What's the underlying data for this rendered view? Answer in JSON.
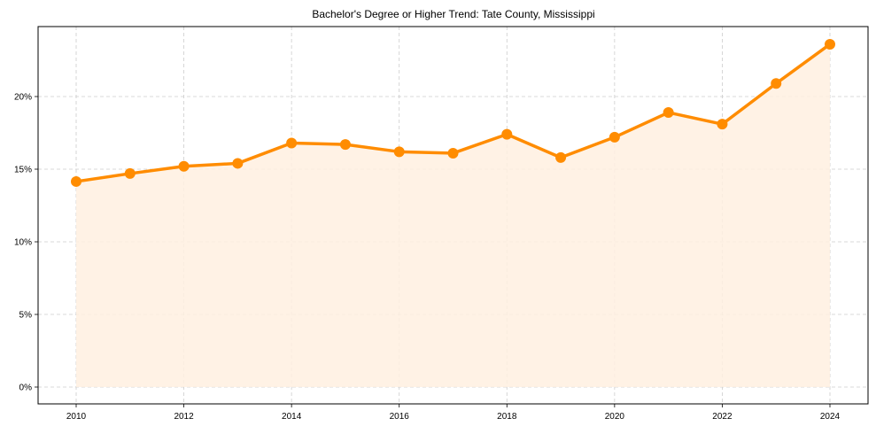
{
  "chart_data": {
    "type": "line",
    "title": "Bachelor's Degree or Higher Trend: Tate County, Mississippi",
    "xlabel": "",
    "ylabel": "",
    "x": [
      2010,
      2011,
      2012,
      2013,
      2014,
      2015,
      2016,
      2017,
      2018,
      2019,
      2020,
      2021,
      2022,
      2023,
      2024
    ],
    "series": [
      {
        "name": "Bachelor's Degree or Higher",
        "values": [
          14.15,
          14.7,
          15.2,
          15.4,
          16.8,
          16.7,
          16.2,
          16.1,
          17.4,
          15.8,
          17.2,
          18.9,
          18.1,
          20.9,
          23.6
        ],
        "color": "#ff8c00",
        "fill": "#fff0e0"
      }
    ],
    "xticks": [
      "2010",
      "2012",
      "2014",
      "2016",
      "2018",
      "2020",
      "2022",
      "2024"
    ],
    "yticks": [
      "0%",
      "5%",
      "10%",
      "15%",
      "20%"
    ],
    "ylim": [
      -1.2,
      24.6
    ],
    "xlim": [
      2009.3,
      2024.7
    ],
    "grid": true,
    "legend": "none"
  }
}
